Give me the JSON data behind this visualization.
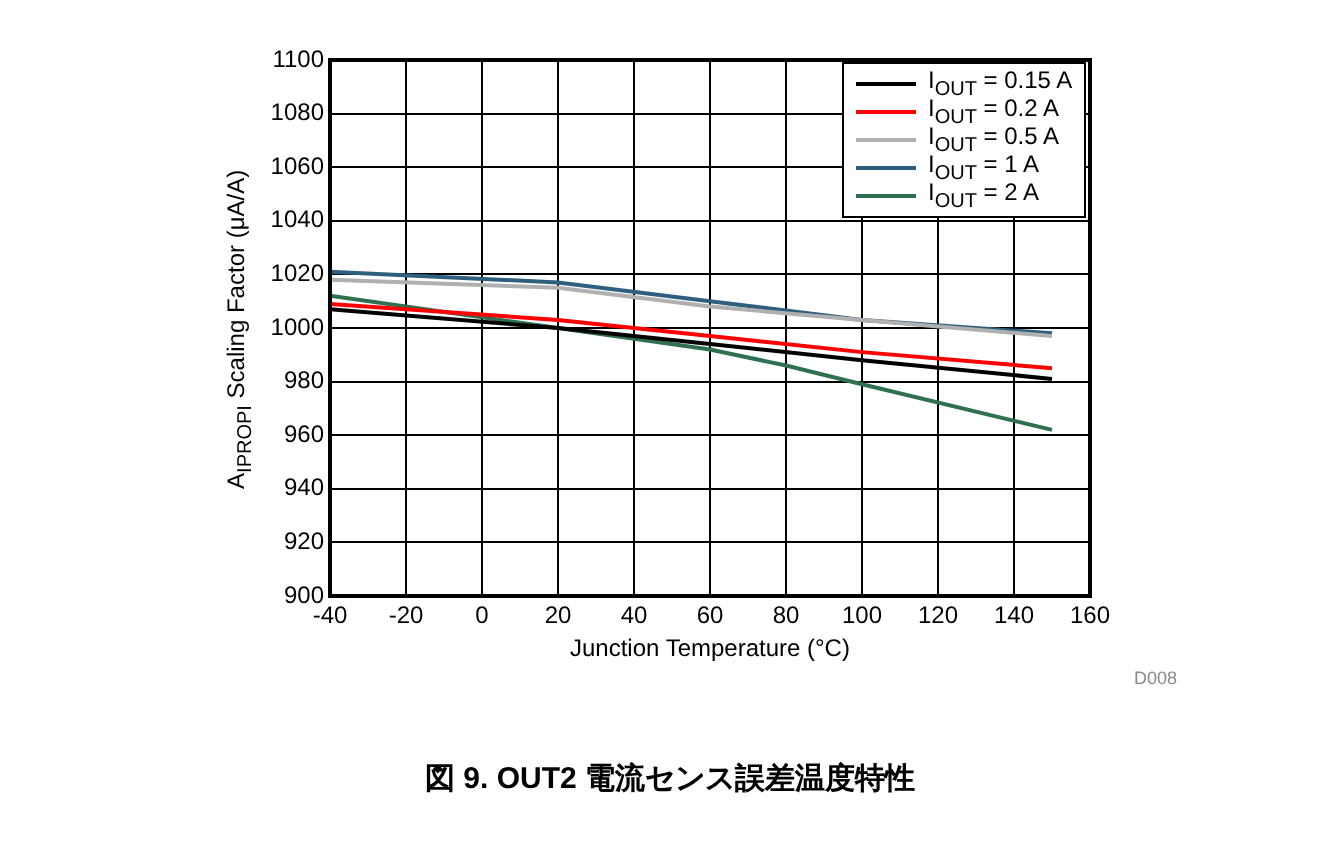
{
  "chart_data": {
    "type": "line",
    "title": "図 9. OUT2 電流センス誤差温度特性",
    "xlabel": "Junction Temperature (°C)",
    "ylabel": "A$_{IPROPI}$ Scaling Factor (μA/A)",
    "annotations": [
      "D008"
    ],
    "x": [
      -40,
      20,
      60,
      100,
      150
    ],
    "series": [
      {
        "name": "I$_{OUT}$ = 0.15 A",
        "color": "#000000",
        "values": [
          1007,
          1000,
          994,
          988,
          981
        ]
      },
      {
        "name": "I$_{OUT}$ = 0.2 A",
        "color": "#ff0000",
        "values": [
          1009,
          1003,
          997,
          991,
          985
        ]
      },
      {
        "name": "I$_{OUT}$ = 0.5 A",
        "color": "#b0b0b0",
        "values": [
          1018,
          1015,
          1008,
          1003,
          997
        ]
      },
      {
        "name": "I$_{OUT}$ = 1 A",
        "color": "#2f5f7f",
        "values": [
          1021,
          1017,
          1010,
          1003,
          998
        ]
      },
      {
        "name": "I$_{OUT}$ = 2 A",
        "color": "#2e7050",
        "x": [
          -40,
          20,
          60,
          80,
          100,
          150
        ],
        "values": [
          1012,
          1000,
          992,
          986,
          979,
          962
        ]
      }
    ],
    "xlim": [
      -40,
      160
    ],
    "xticks": [
      -40,
      -20,
      0,
      20,
      40,
      60,
      80,
      100,
      120,
      140,
      160
    ],
    "ylim": [
      900,
      1100
    ],
    "yticks": [
      900,
      920,
      940,
      960,
      980,
      1000,
      1020,
      1040,
      1060,
      1080,
      1100
    ],
    "grid": true,
    "legend": "top right",
    "marker": "none",
    "line_style": "solid"
  }
}
